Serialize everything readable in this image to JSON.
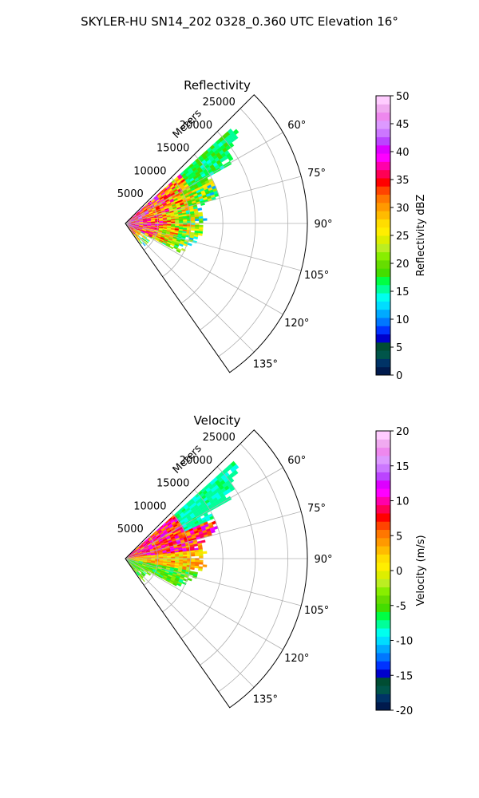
{
  "figure": {
    "title": "SKYLER-HU  SN14_202  0328_0.360 UTC Elevation 16°"
  },
  "chart_data": [
    {
      "type": "heatmap",
      "title": "Reflectivity",
      "radial_label": "Meters",
      "range_ticks": [
        "5000",
        "10000",
        "15000",
        "20000",
        "25000"
      ],
      "range_values": [
        5000,
        10000,
        15000,
        20000,
        25000
      ],
      "r_max": 28000,
      "azimuth_ticks": [
        "60°",
        "75°",
        "90°",
        "105°",
        "120°",
        "135°"
      ],
      "azimuth_values": [
        60,
        75,
        90,
        105,
        120,
        135
      ],
      "theta_range": [
        45,
        145
      ],
      "colorbar": {
        "label": "Reflectivity dBZ",
        "ticks": [
          "0",
          "5",
          "10",
          "15",
          "20",
          "25",
          "30",
          "35",
          "40",
          "45",
          "50"
        ],
        "range": [
          0,
          50
        ],
        "colors": [
          "#001a4d",
          "#003366",
          "#00554a",
          "#004d33",
          "#0000cc",
          "#0033ff",
          "#0077ff",
          "#00aaff",
          "#00ddff",
          "#00ffee",
          "#00ff99",
          "#00ff44",
          "#44dd00",
          "#66dd00",
          "#88ee00",
          "#bbee22",
          "#ddee00",
          "#ffee00",
          "#ffdd00",
          "#ffbb00",
          "#ff9900",
          "#ff7700",
          "#ff4400",
          "#ff0000",
          "#ff0055",
          "#ff00aa",
          "#ff00ff",
          "#dd00ff",
          "#bb44ff",
          "#cc77ff",
          "#dd99ff",
          "#ee88ee",
          "#f0aaf0",
          "#ffccff"
        ]
      }
    },
    {
      "type": "heatmap",
      "title": "Velocity",
      "radial_label": "Meters",
      "range_ticks": [
        "5000",
        "10000",
        "15000",
        "20000",
        "25000"
      ],
      "range_values": [
        5000,
        10000,
        15000,
        20000,
        25000
      ],
      "r_max": 28000,
      "azimuth_ticks": [
        "60°",
        "75°",
        "90°",
        "105°",
        "120°",
        "135°"
      ],
      "azimuth_values": [
        60,
        75,
        90,
        105,
        120,
        135
      ],
      "theta_range": [
        45,
        145
      ],
      "colorbar": {
        "label": "Velocity (m/s)",
        "ticks": [
          "-20",
          "-15",
          "-10",
          "-5",
          "0",
          "5",
          "10",
          "15",
          "20"
        ],
        "range": [
          -20,
          20
        ],
        "colors": [
          "#001a4d",
          "#003366",
          "#00554a",
          "#004d33",
          "#0000cc",
          "#0033ff",
          "#0077ff",
          "#00aaff",
          "#00ddff",
          "#00ffee",
          "#00ff99",
          "#00ff44",
          "#44dd00",
          "#66dd00",
          "#88ee00",
          "#bbee22",
          "#ddee00",
          "#ffee00",
          "#ffdd00",
          "#ffbb00",
          "#ff9900",
          "#ff7700",
          "#ff4400",
          "#ff0000",
          "#ff0055",
          "#ff00aa",
          "#ff00ff",
          "#dd00ff",
          "#bb44ff",
          "#cc77ff",
          "#dd99ff",
          "#ee88ee",
          "#f0aaf0",
          "#ffccff"
        ]
      }
    }
  ]
}
